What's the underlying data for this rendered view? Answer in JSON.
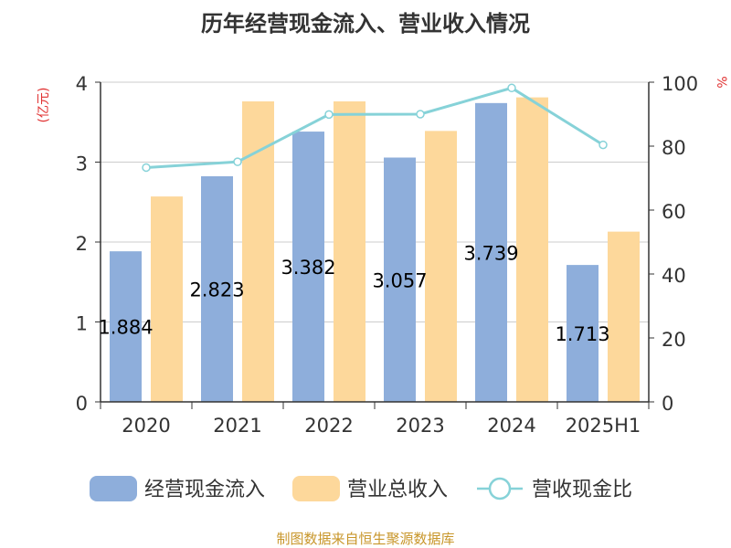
{
  "chart_data": {
    "type": "bar",
    "title": "历年经营现金流入、营业收入情况",
    "categories": [
      "2020",
      "2021",
      "2022",
      "2023",
      "2024",
      "2025H1"
    ],
    "left_axis": {
      "unit": "(亿元)",
      "ylim": [
        0,
        4
      ],
      "ticks": [
        "0",
        "1",
        "2",
        "3",
        "4"
      ]
    },
    "right_axis": {
      "unit": "%",
      "ylim": [
        0,
        100
      ],
      "ticks": [
        "0",
        "20",
        "40",
        "60",
        "80",
        "100"
      ]
    },
    "series": [
      {
        "name": "经营现金流入",
        "kind": "bar",
        "axis": "left",
        "color": "#8eaedb",
        "values": [
          1.884,
          2.823,
          3.382,
          3.057,
          3.739,
          1.713
        ],
        "labels": [
          "1.884",
          "2.823",
          "3.382",
          "3.057",
          "3.739",
          "1.713"
        ]
      },
      {
        "name": "营业总收入",
        "kind": "bar",
        "axis": "left",
        "color": "#fdd89b",
        "values": [
          2.57,
          3.76,
          3.76,
          3.39,
          3.81,
          2.13
        ]
      },
      {
        "name": "营收现金比",
        "kind": "line",
        "axis": "right",
        "color": "#86d2d8",
        "values": [
          73.3,
          75.1,
          89.9,
          90.0,
          98.2,
          80.4
        ]
      }
    ],
    "grid": true,
    "legend_position": "bottom",
    "source": "制图数据来自恒生聚源数据库",
    "colors": {
      "title": "#333333",
      "unit": "#e03030",
      "source": "#c8962a",
      "axis": "#333333",
      "grid": "#cccccc"
    }
  }
}
